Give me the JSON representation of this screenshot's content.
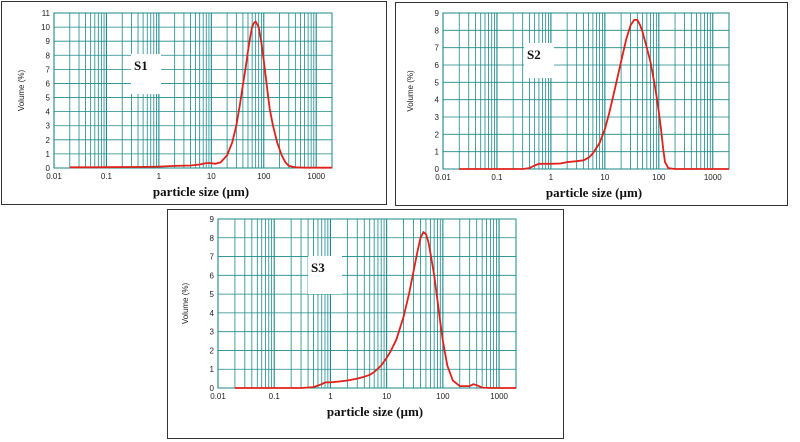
{
  "chart_data": [
    {
      "type": "line",
      "tag": "S1",
      "xlabel": "particle size (µm)",
      "ylabel": "Volume (%)",
      "xscale": "log",
      "xlim": [
        0.01,
        2000
      ],
      "ylim": [
        0,
        11
      ],
      "yticks": [
        0,
        1,
        2,
        3,
        4,
        5,
        6,
        7,
        8,
        9,
        10,
        11
      ],
      "xticks": [
        {
          "v": 0.01,
          "label": "0.01"
        },
        {
          "v": 0.1,
          "label": "0.1"
        },
        {
          "v": 1,
          "label": "1"
        },
        {
          "v": 10,
          "label": "10"
        },
        {
          "v": 100,
          "label": "100"
        },
        {
          "v": 1000,
          "label": "1000"
        }
      ],
      "grid": true,
      "line_color": "#e0201b",
      "grid_color": "#1a8a8a",
      "series": [
        {
          "x": [
            0.02,
            0.05,
            0.1,
            0.3,
            0.6,
            1,
            2,
            4,
            6,
            8,
            10,
            12,
            15,
            20,
            25,
            30,
            35,
            40,
            45,
            50,
            55,
            60,
            65,
            70,
            80,
            90,
            100,
            110,
            120,
            130,
            150,
            180,
            220,
            260,
            300,
            400,
            600,
            1000,
            2000
          ],
          "y": [
            0.05,
            0.05,
            0.06,
            0.07,
            0.08,
            0.1,
            0.15,
            0.18,
            0.25,
            0.35,
            0.35,
            0.3,
            0.4,
            0.9,
            1.8,
            3.0,
            4.5,
            5.9,
            7.1,
            8.3,
            9.3,
            10.0,
            10.3,
            10.4,
            10.0,
            8.9,
            7.6,
            6.4,
            5.2,
            4.2,
            3.0,
            1.8,
            0.9,
            0.4,
            0.15,
            0.05,
            0.02,
            0.02,
            0.02
          ]
        }
      ]
    },
    {
      "type": "line",
      "tag": "S2",
      "xlabel": "particle size (µm)",
      "ylabel": "Volume (%)",
      "xscale": "log",
      "xlim": [
        0.01,
        2000
      ],
      "ylim": [
        0,
        9
      ],
      "yticks": [
        0,
        1,
        2,
        3,
        4,
        5,
        6,
        7,
        8,
        9
      ],
      "xticks": [
        {
          "v": 0.01,
          "label": "0.01"
        },
        {
          "v": 0.1,
          "label": "0.1"
        },
        {
          "v": 1,
          "label": "1"
        },
        {
          "v": 10,
          "label": "10"
        },
        {
          "v": 100,
          "label": "100"
        },
        {
          "v": 1000,
          "label": "1000"
        }
      ],
      "grid": true,
      "line_color": "#e0201b",
      "grid_color": "#1a8a8a",
      "series": [
        {
          "x": [
            0.02,
            0.1,
            0.3,
            0.4,
            0.5,
            0.6,
            0.8,
            1,
            1.5,
            2,
            3,
            4,
            5,
            6,
            8,
            10,
            12,
            15,
            20,
            25,
            30,
            35,
            40,
            45,
            50,
            60,
            70,
            80,
            90,
            100,
            110,
            120,
            130,
            150,
            200,
            500,
            2000
          ],
          "y": [
            0,
            0,
            0,
            0.05,
            0.2,
            0.3,
            0.3,
            0.3,
            0.32,
            0.4,
            0.45,
            0.5,
            0.65,
            0.9,
            1.5,
            2.3,
            3.2,
            4.5,
            6.2,
            7.5,
            8.3,
            8.6,
            8.6,
            8.3,
            7.9,
            7.0,
            6.2,
            5.2,
            4.3,
            3.3,
            2.3,
            1.2,
            0.4,
            0.05,
            0,
            0,
            0
          ]
        }
      ]
    },
    {
      "type": "line",
      "tag": "S3",
      "xlabel": "particle size (µm)",
      "ylabel": "Volume (%)",
      "xscale": "log",
      "xlim": [
        0.01,
        2000
      ],
      "ylim": [
        0,
        9
      ],
      "yticks": [
        0,
        1,
        2,
        3,
        4,
        5,
        6,
        7,
        8,
        9
      ],
      "xticks": [
        {
          "v": 0.01,
          "label": "0.01"
        },
        {
          "v": 0.1,
          "label": "0.1"
        },
        {
          "v": 1,
          "label": "1"
        },
        {
          "v": 10,
          "label": "10"
        },
        {
          "v": 100,
          "label": "100"
        },
        {
          "v": 1000,
          "label": "1000"
        }
      ],
      "grid": true,
      "line_color": "#e0201b",
      "grid_color": "#1a8a8a",
      "series": [
        {
          "x": [
            0.02,
            0.1,
            0.3,
            0.5,
            0.7,
            0.8,
            1,
            1.5,
            2,
            3,
            4,
            5,
            6,
            8,
            10,
            12,
            15,
            20,
            25,
            30,
            35,
            40,
            45,
            50,
            55,
            60,
            70,
            80,
            90,
            100,
            120,
            150,
            200,
            300,
            350,
            400,
            500,
            700,
            1000,
            2000
          ],
          "y": [
            0,
            0,
            0,
            0.05,
            0.2,
            0.3,
            0.3,
            0.35,
            0.4,
            0.5,
            0.6,
            0.7,
            0.85,
            1.2,
            1.6,
            2.0,
            2.6,
            3.8,
            5.0,
            6.2,
            7.2,
            8.0,
            8.3,
            8.2,
            7.8,
            7.2,
            6.0,
            4.7,
            3.5,
            2.5,
            1.2,
            0.4,
            0.1,
            0.1,
            0.2,
            0.15,
            0.02,
            0.0,
            0.0,
            0.0
          ]
        }
      ]
    }
  ]
}
